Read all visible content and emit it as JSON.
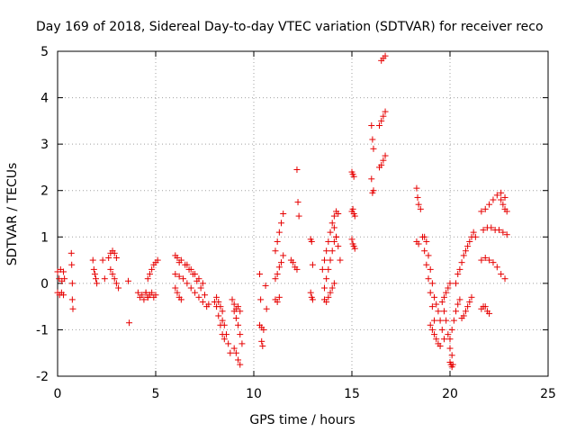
{
  "chart_data": {
    "type": "scatter",
    "title": "Day 169 of 2018, Sidereal Day-to-day VTEC variation (SDTVAR) for receiver reco",
    "xlabel": "GPS time / hours",
    "ylabel": "SDTVAR / TECUs",
    "xlim": [
      0,
      25
    ],
    "ylim": [
      -2,
      5
    ],
    "xticks": [
      "0",
      "5",
      "10",
      "15",
      "20",
      "25"
    ],
    "yticks": [
      "-2",
      "-1",
      "0",
      "1",
      "2",
      "3",
      "4",
      "5"
    ],
    "grid": true,
    "marker": "+",
    "color": "#e60000",
    "segments": [
      {
        "x": [
          0.0,
          0.08,
          0.15,
          0.22,
          0.3,
          0.35
        ],
        "y": [
          0.25,
          0.1,
          0.3,
          0.05,
          0.25,
          0.1
        ]
      },
      {
        "x": [
          0.0,
          0.1,
          0.2,
          0.3
        ],
        "y": [
          -0.2,
          -0.25,
          -0.2,
          -0.25
        ]
      },
      {
        "x": [
          0.7,
          0.72,
          0.75
        ],
        "y": [
          0.65,
          0.4,
          0.0
        ]
      },
      {
        "x": [
          0.75,
          0.78
        ],
        "y": [
          -0.35,
          -0.55
        ]
      },
      {
        "x": [
          1.8,
          1.85,
          1.9,
          1.95,
          2.0
        ],
        "y": [
          0.5,
          0.3,
          0.2,
          0.1,
          0.0
        ]
      },
      {
        "x": [
          2.3,
          2.4
        ],
        "y": [
          0.5,
          0.1
        ]
      },
      {
        "x": [
          2.6,
          2.7,
          2.8,
          2.9,
          3.0
        ],
        "y": [
          0.55,
          0.65,
          0.7,
          0.65,
          0.55
        ]
      },
      {
        "x": [
          2.7,
          2.8,
          2.9,
          3.0,
          3.1
        ],
        "y": [
          0.3,
          0.2,
          0.1,
          0.0,
          -0.1
        ]
      },
      {
        "x": [
          3.6,
          3.65
        ],
        "y": [
          0.05,
          -0.85
        ]
      },
      {
        "x": [
          4.1,
          4.2,
          4.3,
          4.4,
          4.5,
          4.6
        ],
        "y": [
          -0.2,
          -0.3,
          -0.25,
          -0.35,
          -0.2,
          -0.3
        ]
      },
      {
        "x": [
          4.5,
          4.6,
          4.7,
          4.8,
          4.9,
          5.0
        ],
        "y": [
          -0.2,
          -0.3,
          -0.25,
          -0.2,
          -0.3,
          -0.25
        ]
      },
      {
        "x": [
          4.6,
          4.7,
          4.8,
          4.9,
          5.0,
          5.1
        ],
        "y": [
          0.1,
          0.2,
          0.3,
          0.4,
          0.45,
          0.5
        ]
      },
      {
        "x": [
          6.0,
          6.1,
          6.2,
          6.3,
          6.5,
          6.7,
          6.9,
          7.1,
          7.3,
          7.5,
          7.7
        ],
        "y": [
          0.6,
          0.55,
          0.45,
          0.5,
          0.4,
          0.3,
          0.2,
          0.05,
          -0.1,
          -0.25,
          -0.45
        ]
      },
      {
        "x": [
          6.0,
          6.2,
          6.4,
          6.6,
          6.8,
          7.0,
          7.2,
          7.4,
          7.6
        ],
        "y": [
          0.2,
          0.15,
          0.1,
          0.0,
          -0.1,
          -0.2,
          -0.3,
          -0.4,
          -0.5
        ]
      },
      {
        "x": [
          6.0,
          6.1,
          6.2,
          6.3
        ],
        "y": [
          -0.1,
          -0.2,
          -0.3,
          -0.35
        ]
      },
      {
        "x": [
          6.6,
          6.8,
          7.0,
          7.2,
          7.4
        ],
        "y": [
          0.4,
          0.3,
          0.2,
          0.1,
          0.0
        ]
      },
      {
        "x": [
          8.0,
          8.1,
          8.2,
          8.3,
          8.4,
          8.5
        ],
        "y": [
          -0.4,
          -0.5,
          -0.7,
          -0.9,
          -1.1,
          -1.2
        ]
      },
      {
        "x": [
          8.1,
          8.2,
          8.3,
          8.4
        ],
        "y": [
          -0.3,
          -0.4,
          -0.5,
          -0.6
        ]
      },
      {
        "x": [
          8.4,
          8.5,
          8.6,
          8.7,
          8.8
        ],
        "y": [
          -0.8,
          -0.9,
          -1.1,
          -1.3,
          -1.5
        ]
      },
      {
        "x": [
          9.0,
          9.1,
          9.2,
          9.3,
          9.4
        ],
        "y": [
          -0.6,
          -0.75,
          -0.9,
          -1.1,
          -1.3
        ]
      },
      {
        "x": [
          9.0,
          9.1,
          9.2,
          9.3
        ],
        "y": [
          -1.4,
          -1.5,
          -1.65,
          -1.75
        ]
      },
      {
        "x": [
          8.9,
          9.0,
          9.1,
          9.2,
          9.3
        ],
        "y": [
          -0.35,
          -0.45,
          -0.55,
          -0.5,
          -0.6
        ]
      },
      {
        "x": [
          10.3,
          10.35
        ],
        "y": [
          0.2,
          -0.35
        ]
      },
      {
        "x": [
          10.3,
          10.4,
          10.5
        ],
        "y": [
          -0.9,
          -0.95,
          -1.0
        ]
      },
      {
        "x": [
          10.4,
          10.45
        ],
        "y": [
          -1.25,
          -1.35
        ]
      },
      {
        "x": [
          10.6,
          10.65
        ],
        "y": [
          -0.05,
          -0.55
        ]
      },
      {
        "x": [
          11.1,
          11.2,
          11.3,
          11.4,
          11.5
        ],
        "y": [
          0.7,
          0.9,
          1.1,
          1.3,
          1.5
        ]
      },
      {
        "x": [
          11.1,
          11.2,
          11.3,
          11.4,
          11.5
        ],
        "y": [
          0.1,
          0.2,
          0.35,
          0.45,
          0.6
        ]
      },
      {
        "x": [
          11.1,
          11.2,
          11.3
        ],
        "y": [
          -0.35,
          -0.4,
          -0.3
        ]
      },
      {
        "x": [
          11.9,
          12.0,
          12.1,
          12.2
        ],
        "y": [
          0.5,
          0.45,
          0.35,
          0.3
        ]
      },
      {
        "x": [
          12.2,
          12.25,
          12.3
        ],
        "y": [
          2.45,
          1.75,
          1.45
        ]
      },
      {
        "x": [
          12.9,
          12.95,
          13.0
        ],
        "y": [
          0.95,
          0.9,
          0.4
        ]
      },
      {
        "x": [
          12.9,
          12.95,
          13.0
        ],
        "y": [
          -0.2,
          -0.3,
          -0.35
        ]
      },
      {
        "x": [
          13.5,
          13.6,
          13.7,
          13.8,
          13.9,
          14.0,
          14.1,
          14.2,
          14.3
        ],
        "y": [
          0.3,
          0.5,
          0.7,
          0.9,
          1.1,
          1.3,
          1.45,
          1.55,
          1.5
        ]
      },
      {
        "x": [
          13.6,
          13.7,
          13.8,
          13.9,
          14.0,
          14.1,
          14.2
        ],
        "y": [
          -0.1,
          0.1,
          0.3,
          0.5,
          0.7,
          0.9,
          1.0
        ]
      },
      {
        "x": [
          13.6,
          13.7,
          13.8,
          13.9,
          14.0,
          14.1
        ],
        "y": [
          -0.35,
          -0.4,
          -0.3,
          -0.2,
          -0.1,
          0.0
        ]
      },
      {
        "x": [
          14.1,
          14.2,
          14.3,
          14.4
        ],
        "y": [
          1.2,
          1.0,
          0.8,
          0.5
        ]
      },
      {
        "x": [
          15.0,
          15.05,
          15.1
        ],
        "y": [
          2.4,
          2.35,
          2.3
        ]
      },
      {
        "x": [
          15.0,
          15.05,
          15.1,
          15.15
        ],
        "y": [
          1.55,
          1.6,
          1.5,
          1.45
        ]
      },
      {
        "x": [
          15.0,
          15.05,
          15.1,
          15.15
        ],
        "y": [
          0.95,
          0.85,
          0.8,
          0.75
        ]
      },
      {
        "x": [
          16.0,
          16.05,
          16.1
        ],
        "y": [
          3.4,
          3.1,
          2.9
        ]
      },
      {
        "x": [
          16.0,
          16.05,
          16.1
        ],
        "y": [
          2.25,
          1.95,
          2.0
        ]
      },
      {
        "x": [
          16.4,
          16.5,
          16.6,
          16.7
        ],
        "y": [
          3.4,
          3.5,
          3.6,
          3.7
        ]
      },
      {
        "x": [
          16.5,
          16.6,
          16.7
        ],
        "y": [
          4.8,
          4.85,
          4.9
        ]
      },
      {
        "x": [
          16.4,
          16.5,
          16.6,
          16.7
        ],
        "y": [
          2.5,
          2.55,
          2.65,
          2.75
        ]
      },
      {
        "x": [
          18.3,
          18.35,
          18.4,
          18.5
        ],
        "y": [
          2.05,
          1.85,
          1.7,
          1.6
        ]
      },
      {
        "x": [
          18.3,
          18.4
        ],
        "y": [
          0.9,
          0.85
        ]
      },
      {
        "x": [
          18.6,
          18.7,
          18.8,
          18.9,
          19.0,
          19.1,
          19.2
        ],
        "y": [
          1.0,
          0.7,
          0.4,
          0.1,
          -0.2,
          -0.5,
          -0.8
        ]
      },
      {
        "x": [
          18.7,
          18.8,
          18.9,
          19.0,
          19.1
        ],
        "y": [
          1.0,
          0.9,
          0.6,
          0.3,
          0.0
        ]
      },
      {
        "x": [
          19.2,
          19.3,
          19.4,
          19.5,
          19.6,
          19.7
        ],
        "y": [
          -0.3,
          -0.45,
          -0.6,
          -0.8,
          -1.0,
          -1.2
        ]
      },
      {
        "x": [
          19.0,
          19.1,
          19.2,
          19.3,
          19.4,
          19.5
        ],
        "y": [
          -0.9,
          -1.0,
          -1.1,
          -1.2,
          -1.3,
          -1.35
        ]
      },
      {
        "x": [
          19.6,
          19.7,
          19.8,
          19.9,
          20.0,
          20.1
        ],
        "y": [
          -0.4,
          -0.6,
          -0.8,
          -1.1,
          -1.4,
          -1.55
        ]
      },
      {
        "x": [
          19.7,
          19.8,
          19.9,
          20.0
        ],
        "y": [
          -0.3,
          -0.2,
          -0.1,
          0.0
        ]
      },
      {
        "x": [
          20.0,
          20.05,
          20.1,
          20.15
        ],
        "y": [
          -1.7,
          -1.75,
          -1.8,
          -1.75
        ]
      },
      {
        "x": [
          20.0,
          20.1,
          20.2,
          20.3,
          20.4,
          20.5
        ],
        "y": [
          -1.2,
          -1.0,
          -0.8,
          -0.6,
          -0.45,
          -0.35
        ]
      },
      {
        "x": [
          20.3,
          20.4,
          20.5,
          20.6,
          20.7,
          20.8
        ],
        "y": [
          0.0,
          0.2,
          0.3,
          0.45,
          0.6,
          0.7
        ]
      },
      {
        "x": [
          20.6,
          20.7,
          20.8,
          20.9,
          21.0,
          21.1
        ],
        "y": [
          -0.75,
          -0.7,
          -0.6,
          -0.5,
          -0.4,
          -0.3
        ]
      },
      {
        "x": [
          20.9,
          21.0,
          21.1,
          21.2,
          21.3
        ],
        "y": [
          0.8,
          0.9,
          1.0,
          1.1,
          1.0
        ]
      },
      {
        "x": [
          21.6,
          21.8,
          22.0,
          22.2,
          22.4,
          22.6,
          22.8
        ],
        "y": [
          1.55,
          1.6,
          1.7,
          1.8,
          1.9,
          1.95,
          1.85
        ]
      },
      {
        "x": [
          21.7,
          21.9,
          22.1,
          22.3,
          22.5,
          22.7,
          22.9
        ],
        "y": [
          1.15,
          1.2,
          1.2,
          1.15,
          1.15,
          1.1,
          1.05
        ]
      },
      {
        "x": [
          21.6,
          21.8,
          22.0,
          22.2,
          22.4,
          22.6,
          22.8
        ],
        "y": [
          0.5,
          0.55,
          0.5,
          0.45,
          0.35,
          0.2,
          0.1
        ]
      },
      {
        "x": [
          21.6,
          21.7,
          21.8,
          21.9,
          22.0
        ],
        "y": [
          -0.55,
          -0.5,
          -0.5,
          -0.6,
          -0.65
        ]
      },
      {
        "x": [
          22.6,
          22.7,
          22.8,
          22.9
        ],
        "y": [
          1.8,
          1.7,
          1.6,
          1.55
        ]
      }
    ]
  }
}
